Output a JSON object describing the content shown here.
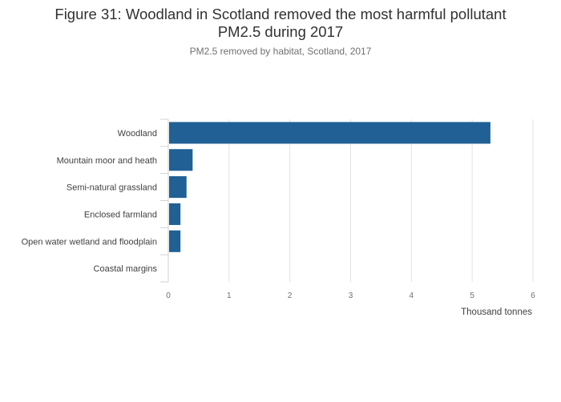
{
  "title_line1": "Figure 31: Woodland in Scotland removed the most harmful pollutant",
  "title_line2": "PM2.5 during 2017",
  "subtitle": "PM2.5 removed by habitat, Scotland, 2017",
  "chart_data": {
    "type": "bar",
    "orientation": "horizontal",
    "categories": [
      "Woodland",
      "Mountain moor and heath",
      "Semi-natural grassland",
      "Enclosed farmland",
      "Open water wetland and floodplain",
      "Coastal margins"
    ],
    "values": [
      5.3,
      0.4,
      0.3,
      0.2,
      0.2,
      0.0
    ],
    "xlabel": "Thousand tonnes",
    "xlim": [
      0,
      6
    ],
    "xticks": [
      0,
      1,
      2,
      3,
      4,
      5,
      6
    ],
    "bar_color": "#206095",
    "grid": true
  }
}
